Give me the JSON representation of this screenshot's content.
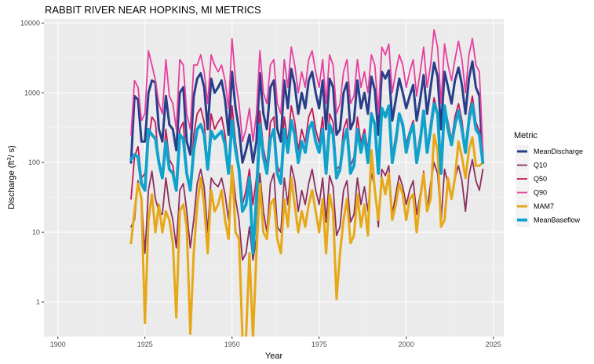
{
  "chart_data": {
    "type": "line",
    "title": "RABBIT RIVER NEAR HOPKINS, MI  METRICS",
    "xlabel": "Year",
    "ylabel_main": "Discharge (ft",
    "ylabel_sup": "3",
    "ylabel_end": "/ s)",
    "xlim": [
      1896,
      2028
    ],
    "ylim": [
      0.32,
      11500
    ],
    "yscale": "log",
    "grid": true,
    "x_ticks": [
      1900,
      1925,
      1950,
      1975,
      2000,
      2025
    ],
    "y_ticks": [
      1,
      10,
      100,
      1000,
      10000
    ],
    "y_tick_labels": [
      "1",
      "10",
      "100",
      "1000",
      "10000"
    ],
    "legend": {
      "title": "Metric",
      "position": "right"
    },
    "x": [
      1921,
      1922,
      1923,
      1924,
      1925,
      1926,
      1927,
      1928,
      1929,
      1930,
      1931,
      1932,
      1933,
      1934,
      1935,
      1936,
      1937,
      1938,
      1939,
      1940,
      1941,
      1942,
      1943,
      1944,
      1945,
      1946,
      1947,
      1948,
      1949,
      1950,
      1951,
      1952,
      1953,
      1954,
      1955,
      1956,
      1957,
      1958,
      1959,
      1960,
      1961,
      1962,
      1963,
      1964,
      1965,
      1966,
      1967,
      1968,
      1969,
      1970,
      1971,
      1972,
      1973,
      1974,
      1975,
      1976,
      1977,
      1978,
      1979,
      1980,
      1981,
      1982,
      1983,
      1984,
      1985,
      1986,
      1987,
      1988,
      1989,
      1990,
      1991,
      1992,
      1993,
      1994,
      1995,
      1996,
      1997,
      1998,
      1999,
      2000,
      2001,
      2002,
      2003,
      2004,
      2005,
      2006,
      2007,
      2008,
      2009,
      2010,
      2011,
      2012,
      2013,
      2014,
      2015,
      2016,
      2017,
      2018,
      2019,
      2020,
      2021,
      2022
    ],
    "series": [
      {
        "name": "MeanDischarge",
        "color": "#283e8a",
        "width": 3,
        "values": [
          100,
          900,
          800,
          200,
          200,
          1000,
          1500,
          1400,
          300,
          200,
          900,
          350,
          300,
          150,
          1000,
          1200,
          200,
          130,
          900,
          1600,
          1900,
          1200,
          300,
          1600,
          1000,
          1200,
          1500,
          800,
          250,
          2000,
          600,
          300,
          100,
          150,
          250,
          100,
          200,
          1900,
          500,
          300,
          1200,
          1500,
          300,
          200,
          1500,
          600,
          2200,
          1300,
          500,
          1000,
          600,
          1500,
          2000,
          1000,
          600,
          1500,
          300,
          1600,
          1200,
          250,
          300,
          1000,
          1400,
          300,
          400,
          1500,
          600,
          1000,
          500,
          1700,
          1100,
          250,
          2000,
          1600,
          2100,
          400,
          800,
          1600,
          1000,
          600,
          900,
          1300,
          400,
          800,
          1800,
          500,
          1200,
          2700,
          1700,
          300,
          2000,
          1200,
          700,
          1500,
          2300,
          1300,
          500,
          1600,
          2800,
          1200,
          900,
          100
        ]
      },
      {
        "name": "Q10",
        "color": "#8b2f5f",
        "width": 1.8,
        "values": [
          12,
          15,
          55,
          30,
          5,
          40,
          75,
          30,
          20,
          18,
          60,
          25,
          15,
          6,
          40,
          50,
          20,
          6,
          15,
          50,
          80,
          45,
          10,
          60,
          50,
          45,
          60,
          35,
          15,
          90,
          30,
          15,
          4,
          5,
          12,
          4,
          8,
          70,
          20,
          10,
          50,
          70,
          12,
          10,
          60,
          25,
          90,
          55,
          20,
          40,
          25,
          50,
          80,
          40,
          25,
          60,
          14,
          65,
          45,
          9,
          12,
          40,
          55,
          14,
          18,
          60,
          25,
          45,
          20,
          70,
          45,
          12,
          80,
          65,
          90,
          18,
          35,
          65,
          45,
          25,
          40,
          55,
          18,
          35,
          75,
          20,
          50,
          100,
          70,
          14,
          80,
          50,
          30,
          60,
          90,
          55,
          20,
          65,
          110,
          55,
          40,
          80
        ]
      },
      {
        "name": "Q50",
        "color": "#c2185b",
        "width": 1.8,
        "values": [
          30,
          120,
          170,
          60,
          70,
          200,
          450,
          380,
          90,
          70,
          300,
          110,
          90,
          40,
          300,
          380,
          70,
          40,
          250,
          500,
          600,
          380,
          90,
          500,
          300,
          380,
          450,
          250,
          80,
          650,
          200,
          90,
          25,
          40,
          80,
          25,
          60,
          550,
          160,
          90,
          380,
          450,
          90,
          70,
          450,
          190,
          650,
          380,
          150,
          300,
          190,
          450,
          600,
          300,
          190,
          450,
          90,
          500,
          380,
          80,
          90,
          300,
          420,
          90,
          120,
          450,
          190,
          300,
          150,
          520,
          350,
          80,
          600,
          500,
          650,
          120,
          250,
          500,
          300,
          190,
          280,
          400,
          120,
          250,
          550,
          150,
          380,
          850,
          520,
          90,
          650,
          380,
          210,
          450,
          700,
          400,
          150,
          500,
          900,
          380,
          280,
          150
        ]
      },
      {
        "name": "Q90",
        "color": "#e83e9e",
        "width": 1.8,
        "values": [
          250,
          1500,
          1200,
          400,
          500,
          4000,
          2500,
          1500,
          700,
          500,
          3000,
          900,
          700,
          300,
          3000,
          2500,
          500,
          300,
          2500,
          2500,
          3500,
          2000,
          700,
          3500,
          2500,
          2000,
          2500,
          1500,
          600,
          6000,
          1500,
          700,
          200,
          300,
          600,
          200,
          500,
          4000,
          1000,
          700,
          2500,
          3000,
          700,
          500,
          3000,
          1200,
          4500,
          2500,
          1000,
          2000,
          1200,
          3000,
          4000,
          2000,
          1200,
          3000,
          700,
          3500,
          2500,
          500,
          700,
          2000,
          3000,
          700,
          900,
          3000,
          1200,
          2000,
          1000,
          3500,
          2500,
          500,
          4500,
          3500,
          5000,
          1000,
          2000,
          3500,
          2500,
          1200,
          2000,
          3000,
          900,
          2000,
          4500,
          1200,
          2500,
          8000,
          4500,
          700,
          5000,
          2500,
          1500,
          3000,
          5500,
          3000,
          1000,
          3500,
          6000,
          2500,
          2000,
          150
        ]
      },
      {
        "name": "MAM7",
        "color": "#e6a817",
        "width": 3,
        "values": [
          7,
          20,
          50,
          30,
          0.5,
          15,
          35,
          10,
          25,
          10,
          20,
          15,
          7,
          0.6,
          20,
          25,
          12,
          0.35,
          5,
          25,
          60,
          25,
          5,
          40,
          20,
          25,
          40,
          15,
          8,
          90,
          10,
          8,
          0.3,
          0.3,
          5,
          0.3,
          5,
          50,
          10,
          8,
          25,
          30,
          8,
          5,
          30,
          12,
          60,
          25,
          10,
          20,
          12,
          25,
          40,
          20,
          10,
          30,
          5,
          35,
          20,
          1.1,
          5,
          15,
          30,
          7,
          9,
          35,
          12,
          25,
          9,
          150,
          40,
          15,
          60,
          35,
          70,
          15,
          25,
          50,
          35,
          15,
          30,
          35,
          10,
          30,
          70,
          20,
          30,
          250,
          150,
          12,
          15,
          60,
          30,
          60,
          200,
          120,
          60,
          150,
          230,
          90,
          90,
          100
        ]
      },
      {
        "name": "MeanBaseflow",
        "color": "#0fa2cc",
        "width": 3.8,
        "values": [
          110,
          130,
          120,
          50,
          40,
          300,
          250,
          220,
          100,
          60,
          200,
          80,
          70,
          40,
          250,
          220,
          70,
          40,
          150,
          300,
          350,
          250,
          80,
          280,
          220,
          250,
          280,
          180,
          70,
          400,
          150,
          80,
          20,
          25,
          60,
          5,
          30,
          350,
          120,
          70,
          220,
          300,
          70,
          50,
          300,
          140,
          400,
          250,
          100,
          200,
          140,
          300,
          380,
          200,
          140,
          300,
          70,
          350,
          250,
          60,
          80,
          200,
          300,
          70,
          90,
          300,
          140,
          250,
          100,
          500,
          350,
          70,
          600,
          450,
          650,
          100,
          200,
          500,
          350,
          140,
          250,
          350,
          100,
          200,
          550,
          140,
          300,
          700,
          500,
          70,
          650,
          300,
          180,
          350,
          550,
          300,
          140,
          400,
          700,
          300,
          250,
          100
        ]
      }
    ]
  }
}
